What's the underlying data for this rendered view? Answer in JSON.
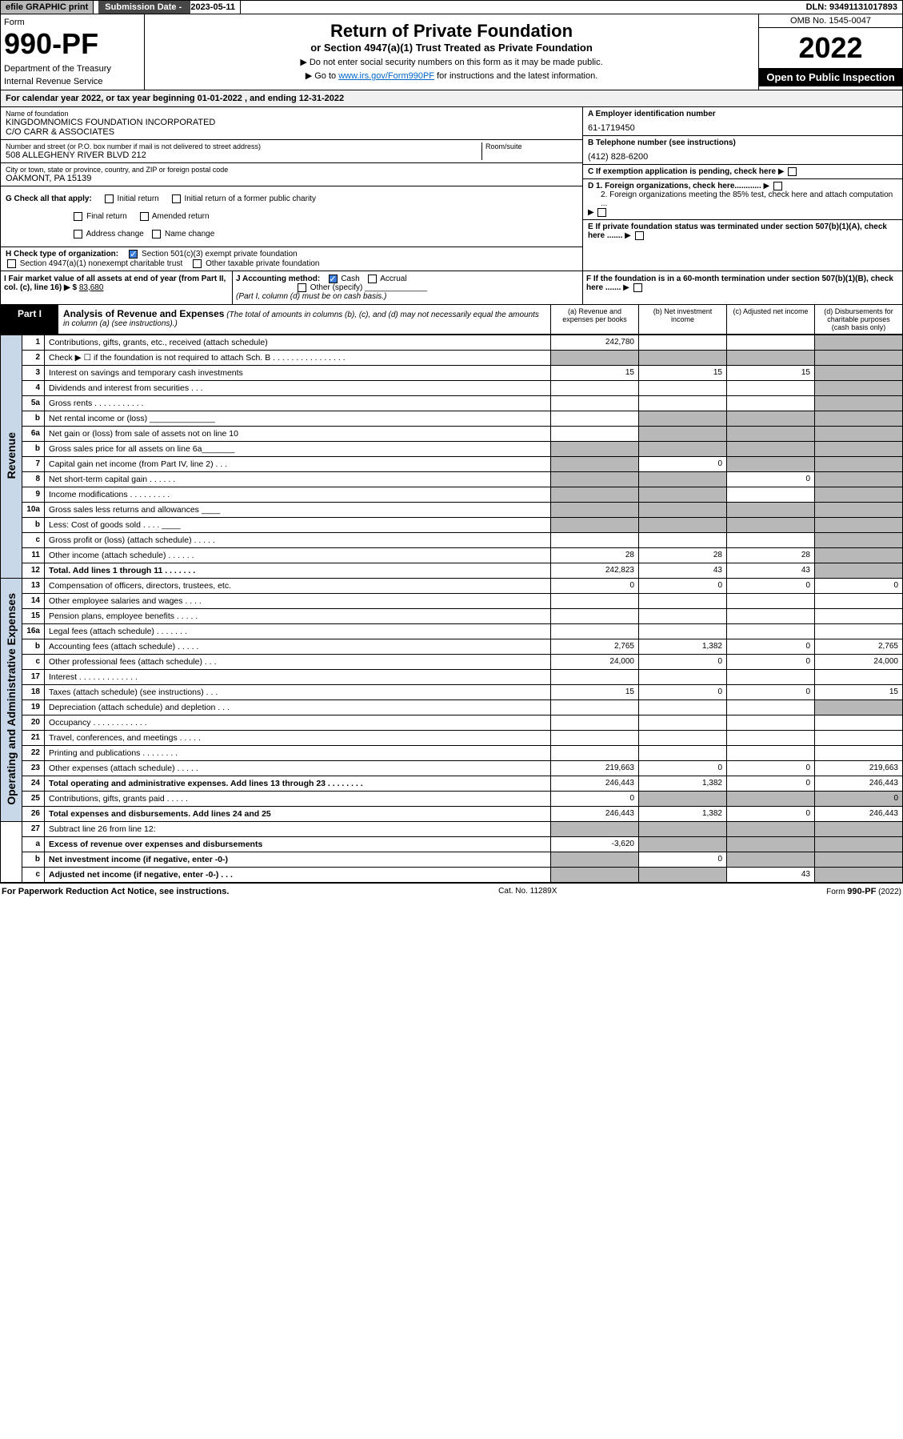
{
  "topbar": {
    "efile": "efile GRAPHIC print",
    "sub_lbl": "Submission Date - ",
    "sub_val": "2023-05-11",
    "dln": "DLN: 93491131017893"
  },
  "header": {
    "form": "Form",
    "num": "990-PF",
    "dept": "Department of the Treasury",
    "irs": "Internal Revenue Service",
    "title": "Return of Private Foundation",
    "subtitle": "or Section 4947(a)(1) Trust Treated as Private Foundation",
    "note1": "▶ Do not enter social security numbers on this form as it may be made public.",
    "note2_a": "▶ Go to ",
    "note2_link": "www.irs.gov/Form990PF",
    "note2_b": " for instructions and the latest information.",
    "omb": "OMB No. 1545-0047",
    "year": "2022",
    "open": "Open to Public Inspection"
  },
  "calyear": "For calendar year 2022, or tax year beginning 01-01-2022                          , and ending 12-31-2022",
  "info": {
    "name_lbl": "Name of foundation",
    "name": "KINGDOMNOMICS FOUNDATION INCORPORATED",
    "name2": "C/O CARR & ASSOCIATES",
    "addr_lbl": "Number and street (or P.O. box number if mail is not delivered to street address)",
    "addr": "508 ALLEGHENY RIVER BLVD 212",
    "room_lbl": "Room/suite",
    "city_lbl": "City or town, state or province, country, and ZIP or foreign postal code",
    "city": "OAKMONT, PA  15139",
    "ein_lbl": "A Employer identification number",
    "ein": "61-1719450",
    "tel_lbl": "B Telephone number (see instructions)",
    "tel": "(412) 828-6200",
    "c": "C If exemption application is pending, check here",
    "d1": "D 1. Foreign organizations, check here............",
    "d2": "2. Foreign organizations meeting the 85% test, check here and attach computation ...",
    "e": "E  If private foundation status was terminated under section 507(b)(1)(A), check here .......",
    "f": "F  If the foundation is in a 60-month termination under section 507(b)(1)(B), check here .......",
    "g": "G Check all that apply:",
    "g_init": "Initial return",
    "g_init2": "Initial return of a former public charity",
    "g_final": "Final return",
    "g_amend": "Amended return",
    "g_addr": "Address change",
    "g_name": "Name change",
    "h": "H Check type of organization:",
    "h_501": "Section 501(c)(3) exempt private foundation",
    "h_4947": "Section 4947(a)(1) nonexempt charitable trust",
    "h_other": "Other taxable private foundation",
    "i": "I Fair market value of all assets at end of year (from Part II, col. (c), line 16)  ▶ $",
    "i_val": "83,680",
    "j": "J Accounting method:",
    "j_cash": "Cash",
    "j_acc": "Accrual",
    "j_other": "Other (specify)",
    "j_note": "(Part I, column (d) must be on cash basis.)"
  },
  "part": {
    "num": "Part I",
    "title": "Analysis of Revenue and Expenses",
    "note": "(The total of amounts in columns (b), (c), and (d) may not necessarily equal the amounts in column (a) (see instructions).)",
    "col_a": "(a)   Revenue and expenses per books",
    "col_b": "(b)   Net investment income",
    "col_c": "(c)   Adjusted net income",
    "col_d": "(d)   Disbursements for charitable purposes (cash basis only)"
  },
  "side": {
    "rev": "Revenue",
    "exp": "Operating and Administrative Expenses"
  },
  "rows": [
    {
      "n": "1",
      "d": "Contributions, gifts, grants, etc., received (attach schedule)",
      "a": "242,780",
      "dgrey": true
    },
    {
      "n": "2",
      "d": "Check ▶ ☐ if the foundation is not required to attach Sch. B     .   .   .   .   .   .   .   .   .   .   .   .   .   .   .   .",
      "allgrey": true
    },
    {
      "n": "3",
      "d": "Interest on savings and temporary cash investments",
      "a": "15",
      "b": "15",
      "c": "15"
    },
    {
      "n": "4",
      "d": "Dividends and interest from securities    .   .   ."
    },
    {
      "n": "5a",
      "d": "Gross rents     .   .   .   .   .   .   .   .   .   .   ."
    },
    {
      "n": "b",
      "d": "Net rental income or (loss) ______________",
      "bcgrey": true
    },
    {
      "n": "6a",
      "d": "Net gain or (loss) from sale of assets not on line 10",
      "bcgrey": true
    },
    {
      "n": "b",
      "d": "Gross sales price for all assets on line 6a_______",
      "allgrey": true
    },
    {
      "n": "7",
      "d": "Capital gain net income (from Part IV, line 2)   .   .   .",
      "b": "0",
      "acgrey": true
    },
    {
      "n": "8",
      "d": "Net short-term capital gain   .   .   .   .   .   .",
      "c": "0",
      "abgrey": true
    },
    {
      "n": "9",
      "d": "Income modifications  .   .   .   .   .   .   .   .   .",
      "abgrey": true
    },
    {
      "n": "10a",
      "d": "Gross sales less returns and allowances  ____",
      "allgrey": true
    },
    {
      "n": "b",
      "d": "Less: Cost of goods sold    .   .   .   .  ____",
      "allgrey": true
    },
    {
      "n": "c",
      "d": "Gross profit or (loss) (attach schedule)    .   .   .   .   ."
    },
    {
      "n": "11",
      "d": "Other income (attach schedule)    .   .   .   .   .   .",
      "a": "28",
      "b": "28",
      "c": "28"
    },
    {
      "n": "12",
      "d": "Total. Add lines 1 through 11    .   .   .   .   .   .   .",
      "a": "242,823",
      "b": "43",
      "c": "43",
      "bold": true,
      "dgrey": true
    }
  ],
  "exp_rows": [
    {
      "n": "13",
      "d": "Compensation of officers, directors, trustees, etc.",
      "a": "0",
      "b": "0",
      "c": "0",
      "dd": "0"
    },
    {
      "n": "14",
      "d": "Other employee salaries and wages   .   .   .   ."
    },
    {
      "n": "15",
      "d": "Pension plans, employee benefits   .   .   .   .   ."
    },
    {
      "n": "16a",
      "d": "Legal fees (attach schedule)  .   .   .   .   .   .   ."
    },
    {
      "n": "b",
      "d": "Accounting fees (attach schedule)  .   .   .   .   .",
      "a": "2,765",
      "b": "1,382",
      "c": "0",
      "dd": "2,765"
    },
    {
      "n": "c",
      "d": "Other professional fees (attach schedule)    .   .   .",
      "a": "24,000",
      "b": "0",
      "c": "0",
      "dd": "24,000"
    },
    {
      "n": "17",
      "d": "Interest  .   .   .   .   .   .   .   .   .   .   .   .   ."
    },
    {
      "n": "18",
      "d": "Taxes (attach schedule) (see instructions)    .   .   .",
      "a": "15",
      "b": "0",
      "c": "0",
      "dd": "15"
    },
    {
      "n": "19",
      "d": "Depreciation (attach schedule) and depletion    .   .   .",
      "dgrey": true
    },
    {
      "n": "20",
      "d": "Occupancy  .   .   .   .   .   .   .   .   .   .   .   ."
    },
    {
      "n": "21",
      "d": "Travel, conferences, and meetings  .   .   .   .   ."
    },
    {
      "n": "22",
      "d": "Printing and publications  .   .   .   .   .   .   .   ."
    },
    {
      "n": "23",
      "d": "Other expenses (attach schedule)  .   .   .   .   .",
      "a": "219,663",
      "b": "0",
      "c": "0",
      "dd": "219,663"
    },
    {
      "n": "24",
      "d": "Total operating and administrative expenses. Add lines 13 through 23   .   .   .   .   .   .   .   .",
      "a": "246,443",
      "b": "1,382",
      "c": "0",
      "dd": "246,443",
      "bold": true
    },
    {
      "n": "25",
      "d": "Contributions, gifts, grants paid     .   .   .   .   .",
      "a": "0",
      "dd": "0",
      "bcgrey": true
    },
    {
      "n": "26",
      "d": "Total expenses and disbursements. Add lines 24 and 25",
      "a": "246,443",
      "b": "1,382",
      "c": "0",
      "dd": "246,443",
      "bold": true
    }
  ],
  "bottom_rows": [
    {
      "n": "27",
      "d": "Subtract line 26 from line 12:",
      "allgrey": true
    },
    {
      "n": "a",
      "d": "Excess of revenue over expenses and disbursements",
      "a": "-3,620",
      "bold": true,
      "bcgrey": true
    },
    {
      "n": "b",
      "d": "Net investment income (if negative, enter -0-)",
      "b": "0",
      "bold": true,
      "acgrey": true
    },
    {
      "n": "c",
      "d": "Adjusted net income (if negative, enter -0-)   .   .   .",
      "c": "43",
      "bold": true,
      "abgrey": true,
      "dgrey": true
    }
  ],
  "footer": {
    "left": "For Paperwork Reduction Act Notice, see instructions.",
    "mid": "Cat. No. 11289X",
    "right": "Form 990-PF (2022)"
  }
}
